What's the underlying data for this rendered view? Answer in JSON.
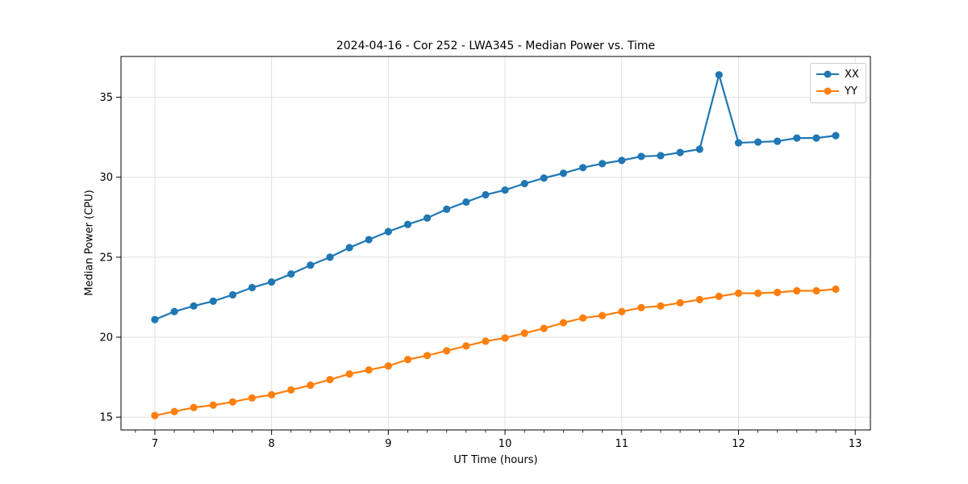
{
  "figure": {
    "background": "#ffffff",
    "spine_color": "#000000",
    "tick_color": "#000000"
  },
  "chart_data": {
    "type": "line",
    "title": "2024-04-16 - Cor 252 - LWA345 - Median Power vs. Time",
    "xlabel": "UT Time (hours)",
    "ylabel": "Median Power (CPU)",
    "xlim": [
      6.71,
      13.13
    ],
    "ylim": [
      14.2,
      37.55
    ],
    "x_ticks": [
      7,
      8,
      9,
      10,
      11,
      12,
      13
    ],
    "y_ticks": [
      15,
      20,
      25,
      30,
      35
    ],
    "x_minor_tick_step": 0.1667,
    "grid": true,
    "grid_color": "#e0e0e0",
    "legend": {
      "position": "upper right",
      "entries": [
        "XX",
        "YY"
      ]
    },
    "x": [
      7.0,
      7.167,
      7.333,
      7.5,
      7.667,
      7.833,
      8.0,
      8.167,
      8.333,
      8.5,
      8.667,
      8.833,
      9.0,
      9.167,
      9.333,
      9.5,
      9.667,
      9.833,
      10.0,
      10.167,
      10.333,
      10.5,
      10.667,
      10.833,
      11.0,
      11.167,
      11.333,
      11.5,
      11.667,
      11.833,
      12.0,
      12.167,
      12.333,
      12.5,
      12.667,
      12.833
    ],
    "series": [
      {
        "name": "XX",
        "color": "#1f77b4",
        "marker": "circle",
        "values": [
          21.1,
          21.6,
          21.95,
          22.25,
          22.65,
          23.1,
          23.45,
          23.95,
          24.5,
          25.0,
          25.6,
          26.1,
          26.6,
          27.05,
          27.45,
          28.0,
          28.45,
          28.9,
          29.2,
          29.6,
          29.95,
          30.25,
          30.6,
          30.85,
          31.05,
          31.3,
          31.35,
          31.55,
          31.75,
          36.4,
          32.15,
          32.2,
          32.25,
          32.45,
          32.45,
          32.6
        ]
      },
      {
        "name": "YY",
        "color": "#ff7f0e",
        "marker": "circle",
        "values": [
          15.1,
          15.35,
          15.6,
          15.75,
          15.95,
          16.2,
          16.4,
          16.7,
          17.0,
          17.35,
          17.7,
          17.95,
          18.2,
          18.6,
          18.85,
          19.15,
          19.45,
          19.75,
          19.95,
          20.25,
          20.55,
          20.9,
          21.2,
          21.35,
          21.6,
          21.85,
          21.95,
          22.15,
          22.35,
          22.55,
          22.75,
          22.75,
          22.8,
          22.9,
          22.9,
          23.0
        ]
      }
    ]
  }
}
